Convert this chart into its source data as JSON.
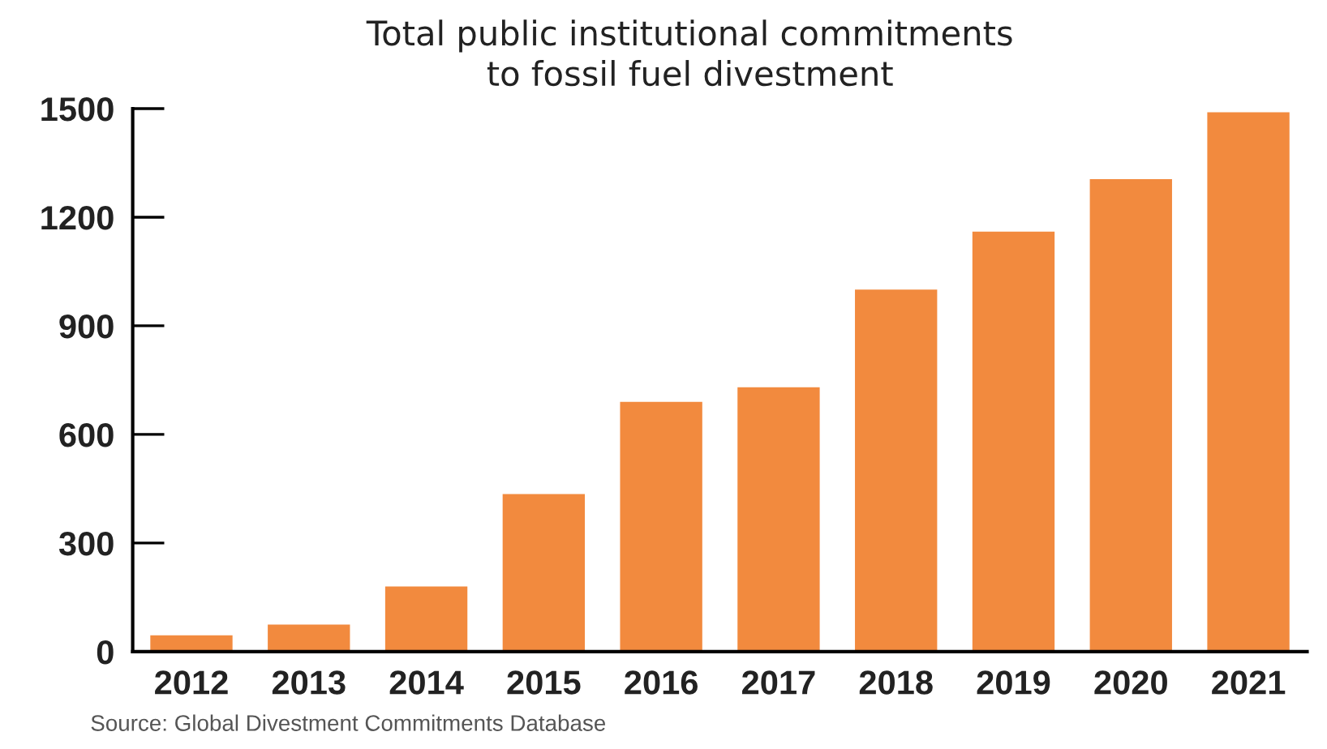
{
  "chart_data": {
    "type": "bar",
    "title": "Total public institutional commitments\nto fossil fuel divestment",
    "categories": [
      "2012",
      "2013",
      "2014",
      "2015",
      "2016",
      "2017",
      "2018",
      "2019",
      "2020",
      "2021"
    ],
    "values": [
      45,
      75,
      180,
      435,
      690,
      730,
      1000,
      1160,
      1305,
      1490
    ],
    "color": "#f28a3e",
    "ylim": [
      0,
      1500
    ],
    "yticks": [
      0,
      300,
      600,
      900,
      1200,
      1500
    ],
    "grid": false,
    "annotations": [
      "Source: Global Divestment Commitments Database"
    ]
  }
}
